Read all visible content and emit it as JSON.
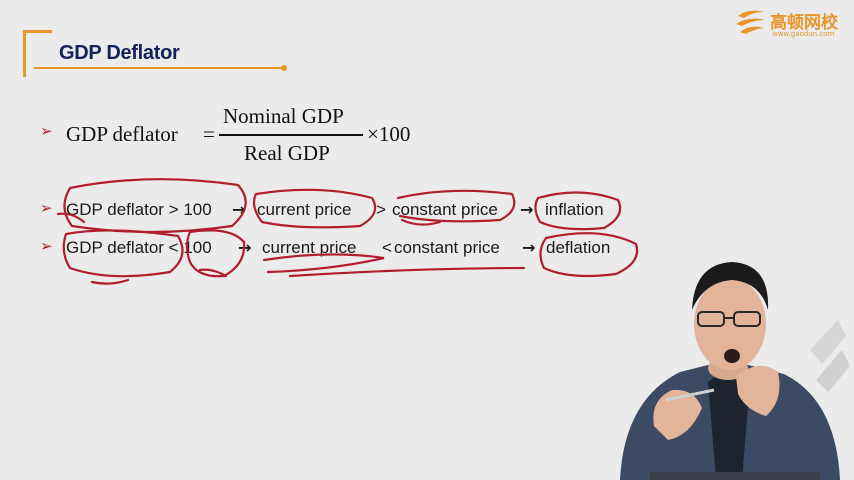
{
  "slide": {
    "title": "GDP Deflator",
    "bullet_glyph": "➢"
  },
  "logo": {
    "name": "高顿网校",
    "url": "www.gaodun.com"
  },
  "formula": {
    "lhs": "GDP deflator",
    "equals": "=",
    "numerator": "Nominal GDP",
    "denominator": "Real GDP",
    "multiplier": "×100"
  },
  "rules": [
    {
      "left": "GDP deflator > 100",
      "arrow1": "→",
      "middle_a": "current price",
      "comparator": ">",
      "middle_b": "constant price",
      "arrow2": "→",
      "result": "inflation"
    },
    {
      "left": "GDP deflator < 100",
      "arrow1": "→",
      "middle_a": "current price",
      "comparator": "<",
      "middle_b": "constant price",
      "arrow2": "→",
      "result": "deflation"
    }
  ],
  "colors": {
    "accent": "#e8962a",
    "title": "#14215a",
    "bullet": "#b2202a",
    "ink": "#b01e2e"
  }
}
